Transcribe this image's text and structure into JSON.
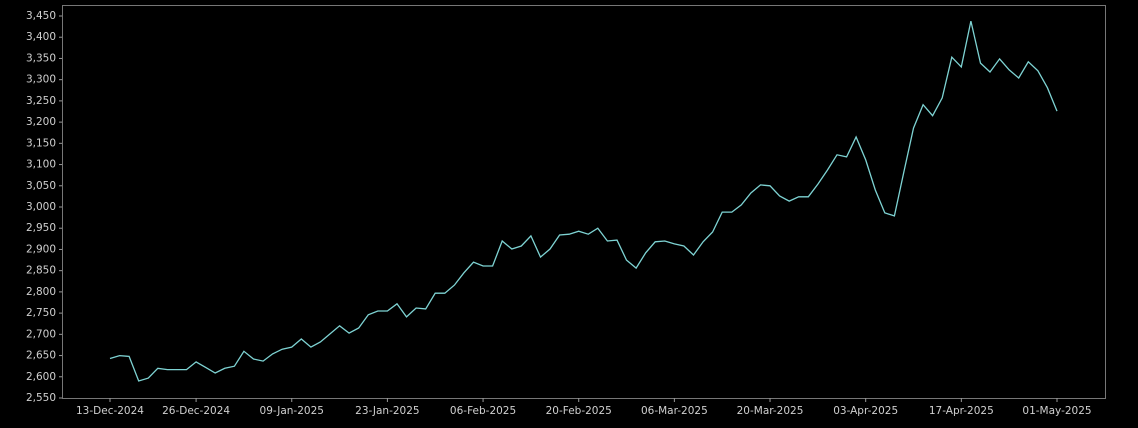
{
  "chart_data": {
    "type": "line",
    "categories": [
      "13-Dec-2024",
      null,
      null,
      null,
      null,
      null,
      null,
      null,
      null,
      "26-Dec-2024",
      null,
      null,
      null,
      null,
      null,
      null,
      null,
      null,
      null,
      "09-Jan-2025",
      null,
      null,
      null,
      null,
      null,
      null,
      null,
      null,
      null,
      "23-Jan-2025",
      null,
      null,
      null,
      null,
      null,
      null,
      null,
      null,
      null,
      "06-Feb-2025",
      null,
      null,
      null,
      null,
      null,
      null,
      null,
      null,
      null,
      "20-Feb-2025",
      null,
      null,
      null,
      null,
      null,
      null,
      null,
      null,
      null,
      "06-Mar-2025",
      null,
      null,
      null,
      null,
      null,
      null,
      null,
      null,
      null,
      "20-Mar-2025",
      null,
      null,
      null,
      null,
      null,
      null,
      null,
      null,
      null,
      "03-Apr-2025",
      null,
      null,
      null,
      null,
      null,
      null,
      null,
      null,
      null,
      "17-Apr-2025",
      null,
      null,
      null,
      null,
      null,
      null,
      null,
      null,
      null,
      "01-May-2025"
    ],
    "values": [
      2643,
      2650,
      2648,
      2590,
      2597,
      2620,
      2617,
      2617,
      2617,
      2635,
      2622,
      2609,
      2620,
      2625,
      2660,
      2642,
      2637,
      2654,
      2665,
      2670,
      2689,
      2670,
      2682,
      2701,
      2720,
      2703,
      2715,
      2746,
      2755,
      2755,
      2772,
      2741,
      2762,
      2760,
      2797,
      2797,
      2816,
      2845,
      2870,
      2861,
      2861,
      2920,
      2901,
      2908,
      2932,
      2882,
      2901,
      2934,
      2936,
      2943,
      2936,
      2950,
      2920,
      2922,
      2875,
      2856,
      2892,
      2918,
      2920,
      2913,
      2908,
      2887,
      2918,
      2941,
      2988,
      2988,
      3005,
      3033,
      3052,
      3050,
      3026,
      3014,
      3024,
      3024,
      3054,
      3087,
      3123,
      3118,
      3165,
      3111,
      3040,
      2986,
      2979,
      3083,
      3186,
      3241,
      3215,
      3257,
      3353,
      3330,
      3438,
      3339,
      3318,
      3349,
      3323,
      3304,
      3342,
      3321,
      3281,
      3226
    ],
    "color": "#7ed3d3",
    "ylim": [
      2550,
      3450
    ],
    "yticks": [
      {
        "value": 2550,
        "label": "2,550"
      },
      {
        "value": 2600,
        "label": "2,600"
      },
      {
        "value": 2650,
        "label": "2,650"
      },
      {
        "value": 2700,
        "label": "2,700"
      },
      {
        "value": 2750,
        "label": "2,750"
      },
      {
        "value": 2800,
        "label": "2,800"
      },
      {
        "value": 2850,
        "label": "2,850"
      },
      {
        "value": 2900,
        "label": "2,900"
      },
      {
        "value": 2950,
        "label": "2,950"
      },
      {
        "value": 3000,
        "label": "3,000"
      },
      {
        "value": 3050,
        "label": "3,050"
      },
      {
        "value": 3100,
        "label": "3,100"
      },
      {
        "value": 3150,
        "label": "3,150"
      },
      {
        "value": 3200,
        "label": "3,200"
      },
      {
        "value": 3250,
        "label": "3,250"
      },
      {
        "value": 3300,
        "label": "3,300"
      },
      {
        "value": 3350,
        "label": "3,350"
      },
      {
        "value": 3400,
        "label": "3,400"
      },
      {
        "value": 3450,
        "label": "3,450"
      }
    ],
    "grid": false
  }
}
